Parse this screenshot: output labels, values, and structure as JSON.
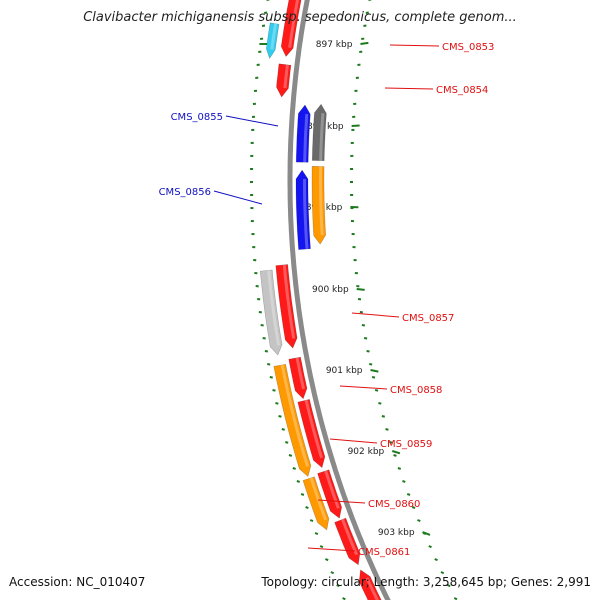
{
  "title": "Clavibacter michiganensis subsp. sepedonicus, complete genom...",
  "accession": "Accession: NC_010407",
  "footer": "Topology: circular; Length: 3,258,645 bp; Genes: 2,991",
  "colors": {
    "backbone": "#8a8a8a",
    "tick": "#1e7a1e",
    "label_red": "#e01010",
    "label_blue": "#1010c0",
    "gene_red": "#ff1a1a",
    "gene_blue": "#1414f0",
    "gene_orange": "#ff9900",
    "gene_gray": "#6a6a6a",
    "gene_lightgray": "#c4c4c4",
    "gene_cyan": "#33ccee"
  },
  "scale_labels": [
    {
      "id": "897",
      "text": "897 kbp"
    },
    {
      "id": "898",
      "text": "898 kbp"
    },
    {
      "id": "899",
      "text": "899 kbp"
    },
    {
      "id": "900",
      "text": "900 kbp"
    },
    {
      "id": "901",
      "text": "901 kbp"
    },
    {
      "id": "902",
      "text": "902 kbp"
    },
    {
      "id": "903",
      "text": "903 kbp"
    }
  ],
  "gene_labels": [
    {
      "id": "0853",
      "text": "CMS_0853",
      "color": "label_red"
    },
    {
      "id": "0854",
      "text": "CMS_0854",
      "color": "label_red"
    },
    {
      "id": "0855",
      "text": "CMS_0855",
      "color": "label_blue"
    },
    {
      "id": "0856",
      "text": "CMS_0856",
      "color": "label_blue"
    },
    {
      "id": "0857",
      "text": "CMS_0857",
      "color": "label_red"
    },
    {
      "id": "0858",
      "text": "CMS_0858",
      "color": "label_red"
    },
    {
      "id": "0859",
      "text": "CMS_0859",
      "color": "label_red"
    },
    {
      "id": "0860",
      "text": "CMS_0860",
      "color": "label_red"
    },
    {
      "id": "0861",
      "text": "CMS_0861",
      "color": "label_red"
    }
  ]
}
